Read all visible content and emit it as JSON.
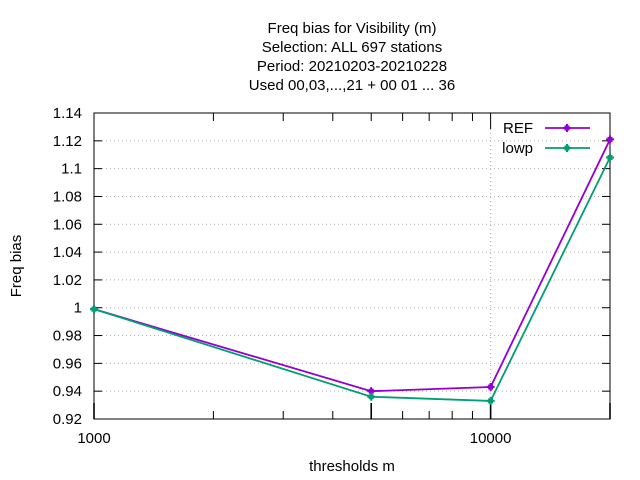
{
  "chart_data": {
    "type": "line",
    "title_lines": [
      "Freq bias  for Visibility (m)",
      "Selection: ALL    697 stations",
      "Period: 20210203-20210228",
      "Used  00,03,...,21  + 00 01 ... 36"
    ],
    "xlabel": "thresholds m",
    "ylabel": "Freq bias",
    "x_scale": "log",
    "xlim": [
      1000,
      20000
    ],
    "ylim": [
      0.92,
      1.14
    ],
    "x_tick_labels": [
      {
        "value": 1000,
        "label": "1000"
      },
      {
        "value": 10000,
        "label": "10000"
      }
    ],
    "y_ticks": [
      0.92,
      0.94,
      0.96,
      0.98,
      1.0,
      1.02,
      1.04,
      1.06,
      1.08,
      1.1,
      1.12,
      1.14
    ],
    "y_tick_labels": [
      "0.92",
      "0.94",
      "0.96",
      "0.98",
      "1",
      "1.02",
      "1.04",
      "1.06",
      "1.08",
      "1.1",
      "1.12",
      "1.14"
    ],
    "grid": true,
    "legend_position": "top-right",
    "series": [
      {
        "name": "REF",
        "color": "#9400d3",
        "x": [
          1000,
          5000,
          10000,
          20000
        ],
        "y": [
          0.999,
          0.94,
          0.943,
          1.121
        ]
      },
      {
        "name": "lowp",
        "color": "#009e73",
        "x": [
          1000,
          5000,
          10000,
          20000
        ],
        "y": [
          0.999,
          0.936,
          0.933,
          1.108
        ]
      }
    ]
  }
}
